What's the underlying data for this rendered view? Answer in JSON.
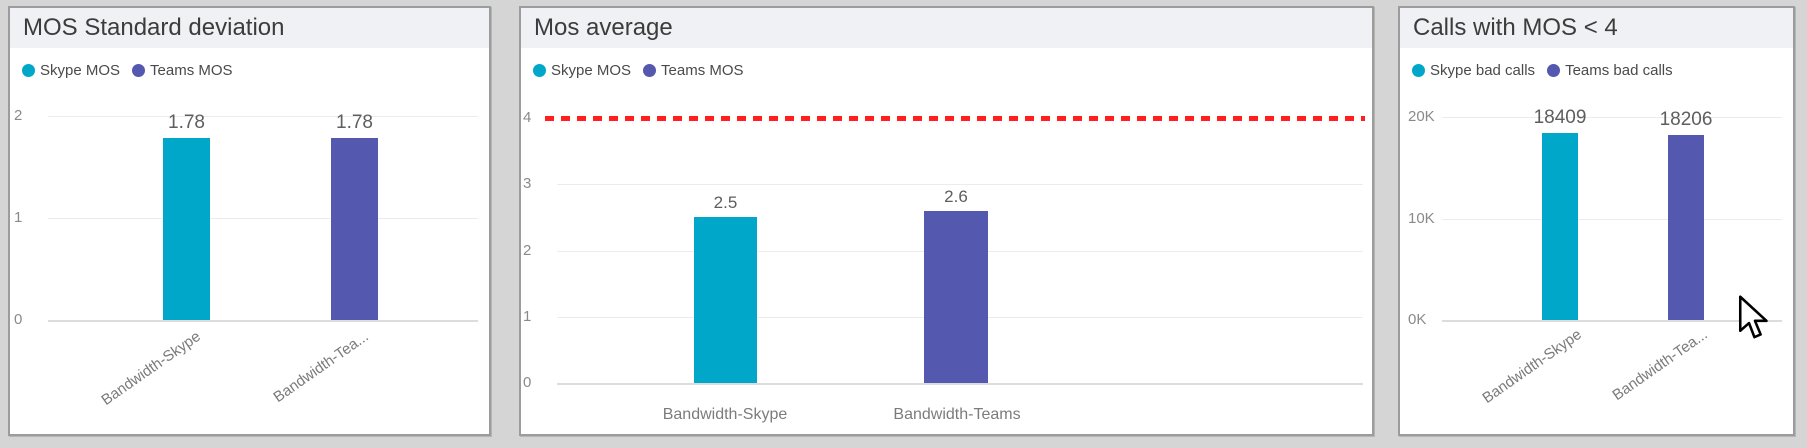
{
  "panels": [
    {
      "title": "MOS Standard deviation",
      "legend": [
        {
          "label": "Skype MOS",
          "color": "#00A7C9"
        },
        {
          "label": "Teams MOS",
          "color": "#5558AF"
        }
      ],
      "yticks": [
        "2",
        "1",
        "0"
      ],
      "bars": [
        {
          "label": "1.78"
        },
        {
          "label": "1.78"
        }
      ],
      "xlabels": [
        "Bandwidth-Skype",
        "Bandwidth-Tea..."
      ]
    },
    {
      "title": "Mos average",
      "legend": [
        {
          "label": "Skype MOS",
          "color": "#00A7C9"
        },
        {
          "label": "Teams MOS",
          "color": "#5558AF"
        }
      ],
      "yticks": [
        "4",
        "3",
        "2",
        "1",
        "0"
      ],
      "bars": [
        {
          "label": "2.5"
        },
        {
          "label": "2.6"
        }
      ],
      "xlabels": [
        "Bandwidth-Skype",
        "Bandwidth-Teams"
      ]
    },
    {
      "title": "Calls with MOS < 4",
      "legend": [
        {
          "label": "Skype bad calls",
          "color": "#00A7C9"
        },
        {
          "label": "Teams bad calls",
          "color": "#5558AF"
        }
      ],
      "yticks": [
        "20K",
        "10K",
        "0K"
      ],
      "bars": [
        {
          "label": "18409"
        },
        {
          "label": "18206"
        }
      ],
      "xlabels": [
        "Bandwidth-Skype",
        "Bandwidth-Tea..."
      ]
    }
  ],
  "chart_data": [
    {
      "type": "bar",
      "title": "MOS Standard deviation",
      "categories": [
        "Bandwidth-Skype",
        "Bandwidth-Teams"
      ],
      "series": [
        {
          "name": "Skype MOS",
          "color": "#00A7C9",
          "values": [
            1.78,
            null
          ]
        },
        {
          "name": "Teams MOS",
          "color": "#5558AF",
          "values": [
            null,
            1.78
          ]
        }
      ],
      "values": [
        1.78,
        1.78
      ],
      "bar_colors": [
        "#00A7C9",
        "#5558AF"
      ],
      "ylim": [
        0,
        2
      ],
      "yticks": [
        0,
        1,
        2
      ],
      "grid": true,
      "legend_position": "top-left"
    },
    {
      "type": "bar",
      "title": "Mos average",
      "categories": [
        "Bandwidth-Skype",
        "Bandwidth-Teams"
      ],
      "series": [
        {
          "name": "Skype MOS",
          "color": "#00A7C9",
          "values": [
            2.5,
            null
          ]
        },
        {
          "name": "Teams MOS",
          "color": "#5558AF",
          "values": [
            null,
            2.6
          ]
        }
      ],
      "values": [
        2.5,
        2.6
      ],
      "bar_colors": [
        "#00A7C9",
        "#5558AF"
      ],
      "ylim": [
        0,
        4
      ],
      "yticks": [
        0,
        1,
        2,
        3,
        4
      ],
      "grid": true,
      "legend_position": "top-left",
      "reference_line": {
        "y": 4,
        "color": "#FF1F1F",
        "style": "dashed"
      }
    },
    {
      "type": "bar",
      "title": "Calls with MOS < 4",
      "categories": [
        "Bandwidth-Skype",
        "Bandwidth-Teams"
      ],
      "series": [
        {
          "name": "Skype bad calls",
          "color": "#00A7C9",
          "values": [
            18409,
            null
          ]
        },
        {
          "name": "Teams bad calls",
          "color": "#5558AF",
          "values": [
            null,
            18206
          ]
        }
      ],
      "values": [
        18409,
        18206
      ],
      "bar_colors": [
        "#00A7C9",
        "#5558AF"
      ],
      "ylim": [
        0,
        20000
      ],
      "yticks": [
        0,
        10000,
        20000
      ],
      "ytick_labels": [
        "0K",
        "10K",
        "20K"
      ],
      "grid": true,
      "legend_position": "top-left"
    }
  ]
}
